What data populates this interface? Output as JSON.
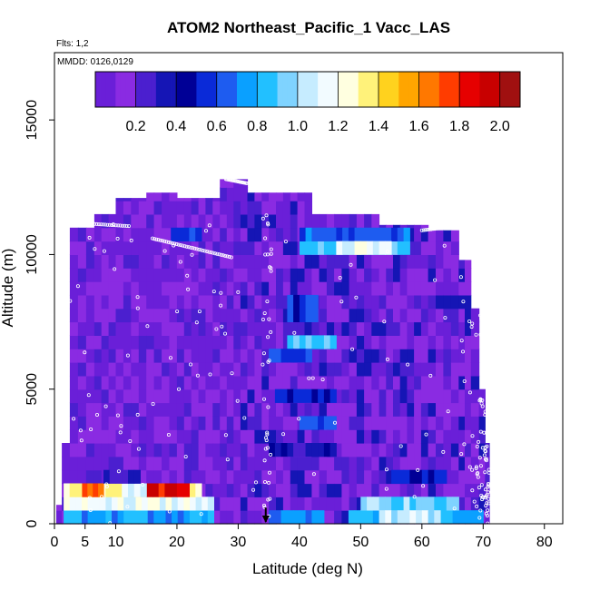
{
  "chart_data": {
    "type": "heatmap",
    "title": "ATOM2 Northeast_Pacific_1 Vacc_LAS",
    "subtitle_flights": "Flts: 1,2",
    "subtitle_dates": "MMDD: 0126,0129",
    "xlabel": "Latitude (deg N)",
    "ylabel": "Altitude (m)",
    "xlim": [
      0,
      83
    ],
    "ylim": [
      0,
      17500
    ],
    "x_ticks": [
      0,
      5,
      10,
      20,
      30,
      40,
      50,
      60,
      70,
      80
    ],
    "x_tick_labels": [
      "0",
      "5",
      "10",
      "20",
      "30",
      "40",
      "50",
      "60",
      "70",
      "80"
    ],
    "y_ticks": [
      0,
      5000,
      10000,
      15000
    ],
    "y_tick_labels": [
      "0",
      "5000",
      "10000",
      "15000"
    ],
    "colorbar": {
      "range": [
        0,
        2.1
      ],
      "ticks": [
        0.2,
        0.4,
        0.6,
        0.8,
        1.0,
        1.2,
        1.4,
        1.6,
        1.8,
        2.0
      ],
      "tick_labels": [
        "0.2",
        "0.4",
        "0.6",
        "0.8",
        "1.0",
        "1.2",
        "1.4",
        "1.6",
        "1.8",
        "2.0"
      ],
      "colors": [
        "#6a1fd8",
        "#8a2be2",
        "#4b1fcf",
        "#1515b5",
        "#000096",
        "#0a2ad8",
        "#1e5cf0",
        "#0aa0ff",
        "#22c0ff",
        "#7fd3ff",
        "#c6ecff",
        "#f2fbff",
        "#ffffe0",
        "#fff27a",
        "#ffd21e",
        "#ffa500",
        "#ff7800",
        "#ff3c00",
        "#e60000",
        "#c80000",
        "#a01010"
      ]
    },
    "grid": false,
    "aircraft_marker_lat": 34.5,
    "columns": [
      {
        "lat_min": 0.3,
        "lat_max": 1.2,
        "alt_top": 700
      },
      {
        "lat_min": 1.2,
        "lat_max": 2.5,
        "alt_top": 3000
      },
      {
        "lat_min": 2.5,
        "lat_max": 6.5,
        "alt_top": 11000
      },
      {
        "lat_min": 6.5,
        "lat_max": 10.0,
        "alt_top": 11500
      },
      {
        "lat_min": 10.0,
        "lat_max": 15.0,
        "alt_top": 12100
      },
      {
        "lat_min": 15.0,
        "lat_max": 20.0,
        "alt_top": 12300
      },
      {
        "lat_min": 20.0,
        "lat_max": 27.0,
        "alt_top": 12100
      },
      {
        "lat_min": 27.0,
        "lat_max": 31.5,
        "alt_top": 12800
      },
      {
        "lat_min": 31.5,
        "lat_max": 42.0,
        "alt_top": 12300
      },
      {
        "lat_min": 42.0,
        "lat_max": 53.0,
        "alt_top": 11500
      },
      {
        "lat_min": 53.0,
        "lat_max": 61.0,
        "alt_top": 11100
      },
      {
        "lat_min": 61.0,
        "lat_max": 66.0,
        "alt_top": 10900
      },
      {
        "lat_min": 66.0,
        "lat_max": 68.0,
        "alt_top": 9800
      },
      {
        "lat_min": 68.0,
        "lat_max": 69.3,
        "alt_top": 8000
      },
      {
        "lat_min": 69.3,
        "lat_max": 70.3,
        "alt_top": 5000
      },
      {
        "lat_min": 70.3,
        "lat_max": 71.0,
        "alt_top": 3000
      }
    ],
    "features": [
      {
        "lat_min": 1.5,
        "lat_max": 26.0,
        "alt_min": 0,
        "alt_max": 500,
        "value": 0.75
      },
      {
        "lat_min": 1.5,
        "lat_max": 26.0,
        "alt_min": 500,
        "alt_max": 1000,
        "value": 1.15
      },
      {
        "lat_min": 1.5,
        "lat_max": 24.0,
        "alt_min": 1000,
        "alt_max": 1500,
        "value": 1.3
      },
      {
        "lat_min": 15.0,
        "lat_max": 22.0,
        "alt_min": 1000,
        "alt_max": 1500,
        "value": 1.85
      },
      {
        "lat_min": 4.5,
        "lat_max": 8.0,
        "alt_min": 1000,
        "alt_max": 1500,
        "value": 1.65
      },
      {
        "lat_min": 11.0,
        "lat_max": 15.0,
        "alt_min": 1000,
        "alt_max": 1500,
        "value": 1.1
      },
      {
        "lat_min": 35.0,
        "lat_max": 44.0,
        "alt_min": 0,
        "alt_max": 500,
        "value": 0.7
      },
      {
        "lat_min": 48.0,
        "lat_max": 70.0,
        "alt_min": 0,
        "alt_max": 500,
        "value": 0.8
      },
      {
        "lat_min": 50.0,
        "lat_max": 66.0,
        "alt_min": 500,
        "alt_max": 1000,
        "value": 0.95
      },
      {
        "lat_min": 53.0,
        "lat_max": 63.0,
        "alt_min": 0,
        "alt_max": 500,
        "value": 1.05
      },
      {
        "lat_min": 55.0,
        "lat_max": 64.0,
        "alt_min": 1500,
        "alt_max": 2000,
        "value": 0.55
      },
      {
        "lat_min": 36.0,
        "lat_max": 46.0,
        "alt_min": 4500,
        "alt_max": 5000,
        "value": 0.55
      },
      {
        "lat_min": 40.0,
        "lat_max": 46.0,
        "alt_min": 3500,
        "alt_max": 4000,
        "value": 0.65
      },
      {
        "lat_min": 38.0,
        "lat_max": 46.0,
        "alt_min": 6500,
        "alt_max": 7000,
        "value": 0.9
      },
      {
        "lat_min": 35.0,
        "lat_max": 42.0,
        "alt_min": 6000,
        "alt_max": 6500,
        "value": 0.6
      },
      {
        "lat_min": 38.0,
        "lat_max": 43.0,
        "alt_min": 7500,
        "alt_max": 8500,
        "value": 0.55
      },
      {
        "lat_min": 40.0,
        "lat_max": 58.0,
        "alt_min": 10000,
        "alt_max": 10500,
        "value": 0.85
      },
      {
        "lat_min": 40.0,
        "lat_max": 58.0,
        "alt_min": 10500,
        "alt_max": 11000,
        "value": 0.65
      },
      {
        "lat_min": 46.0,
        "lat_max": 55.0,
        "alt_min": 10000,
        "alt_max": 10500,
        "value": 1.15
      },
      {
        "lat_min": 19.0,
        "lat_max": 24.0,
        "alt_min": 10500,
        "alt_max": 11000,
        "value": 0.6
      },
      {
        "lat_min": 35.0,
        "lat_max": 46.0,
        "alt_min": 2500,
        "alt_max": 3000,
        "value": 0.35
      },
      {
        "lat_min": 8.0,
        "lat_max": 14.0,
        "alt_min": 1500,
        "alt_max": 2000,
        "value": 0.3
      }
    ]
  }
}
